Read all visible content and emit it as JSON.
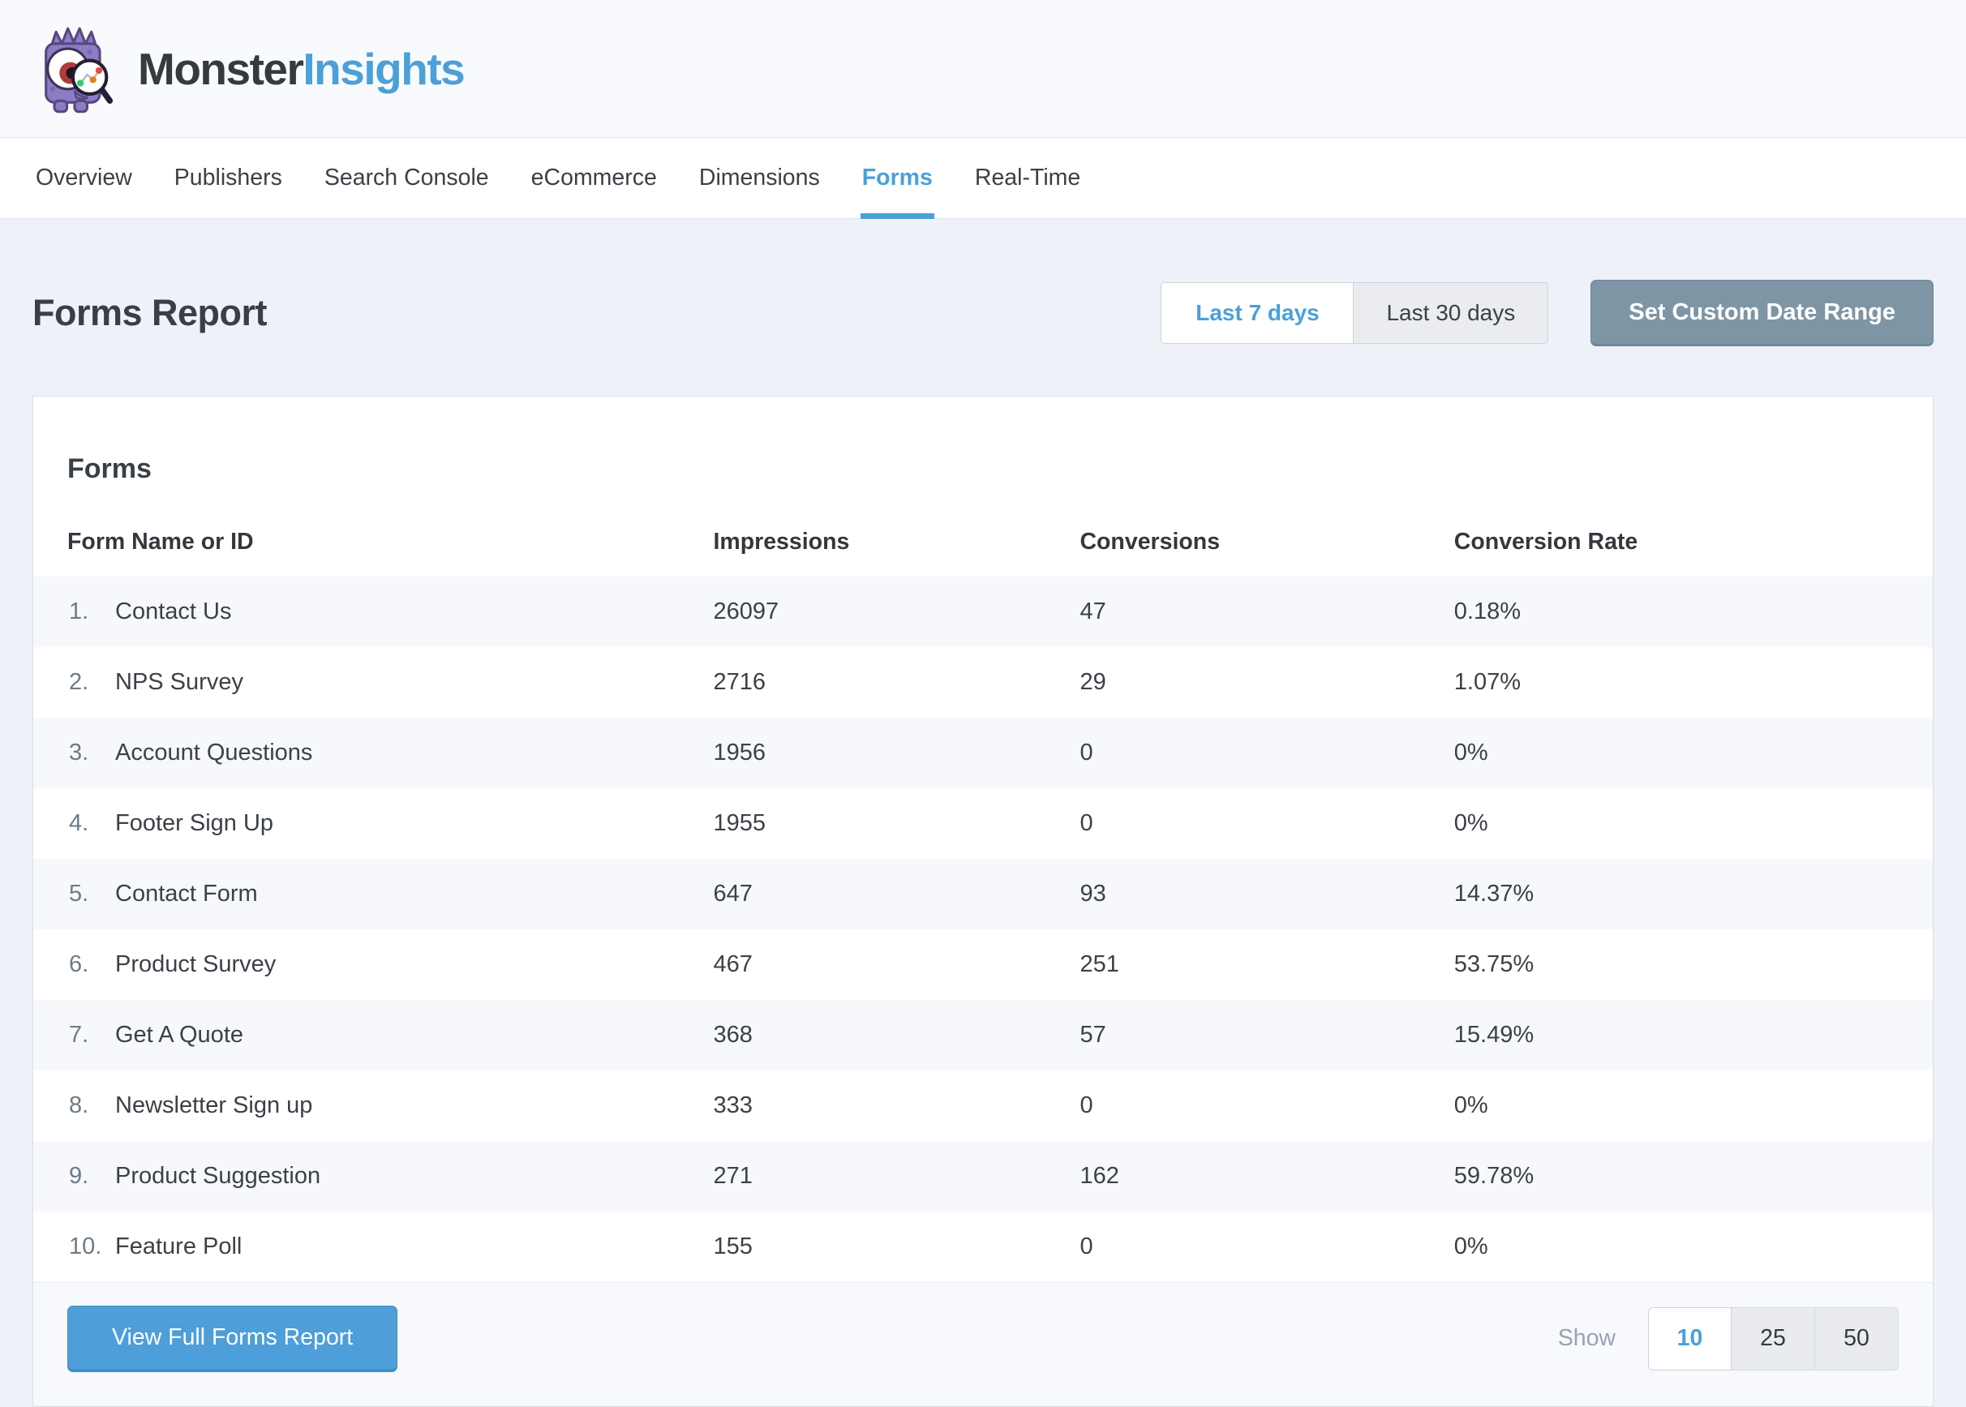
{
  "brand": {
    "name_primary": "Monster",
    "name_secondary": "Insights"
  },
  "nav": {
    "items": [
      {
        "label": "Overview",
        "active": false
      },
      {
        "label": "Publishers",
        "active": false
      },
      {
        "label": "Search Console",
        "active": false
      },
      {
        "label": "eCommerce",
        "active": false
      },
      {
        "label": "Dimensions",
        "active": false
      },
      {
        "label": "Forms",
        "active": true
      },
      {
        "label": "Real-Time",
        "active": false
      }
    ]
  },
  "page": {
    "title": "Forms Report"
  },
  "date_range": {
    "options": [
      {
        "label": "Last 7 days",
        "active": true
      },
      {
        "label": "Last 30 days",
        "active": false
      }
    ],
    "custom_button": "Set Custom Date Range"
  },
  "card": {
    "title": "Forms",
    "table": {
      "columns": [
        "Form Name or ID",
        "Impressions",
        "Conversions",
        "Conversion Rate"
      ],
      "rows": [
        {
          "rank": "1.",
          "name": "Contact Us",
          "impressions": "26097",
          "conversions": "47",
          "rate": "0.18%"
        },
        {
          "rank": "2.",
          "name": "NPS Survey",
          "impressions": "2716",
          "conversions": "29",
          "rate": "1.07%"
        },
        {
          "rank": "3.",
          "name": "Account Questions",
          "impressions": "1956",
          "conversions": "0",
          "rate": "0%"
        },
        {
          "rank": "4.",
          "name": "Footer Sign Up",
          "impressions": "1955",
          "conversions": "0",
          "rate": "0%"
        },
        {
          "rank": "5.",
          "name": "Contact Form",
          "impressions": "647",
          "conversions": "93",
          "rate": "14.37%"
        },
        {
          "rank": "6.",
          "name": "Product Survey",
          "impressions": "467",
          "conversions": "251",
          "rate": "53.75%"
        },
        {
          "rank": "7.",
          "name": "Get A Quote",
          "impressions": "368",
          "conversions": "57",
          "rate": "15.49%"
        },
        {
          "rank": "8.",
          "name": "Newsletter Sign up",
          "impressions": "333",
          "conversions": "0",
          "rate": "0%"
        },
        {
          "rank": "9.",
          "name": "Product Suggestion",
          "impressions": "271",
          "conversions": "162",
          "rate": "59.78%"
        },
        {
          "rank": "10.",
          "name": "Feature Poll",
          "impressions": "155",
          "conversions": "0",
          "rate": "0%"
        }
      ]
    },
    "footer": {
      "view_button": "View Full Forms Report",
      "show_label": "Show",
      "page_sizes": [
        {
          "label": "10",
          "active": true
        },
        {
          "label": "25",
          "active": false
        },
        {
          "label": "50",
          "active": false
        }
      ]
    }
  },
  "colors": {
    "accent_blue": "#4ba0d8",
    "custom_range_button": "#7e95a6",
    "view_button_blue": "#4d9ed9",
    "row_tint": "#f6f8fc",
    "page_background": "#eef1f8"
  }
}
